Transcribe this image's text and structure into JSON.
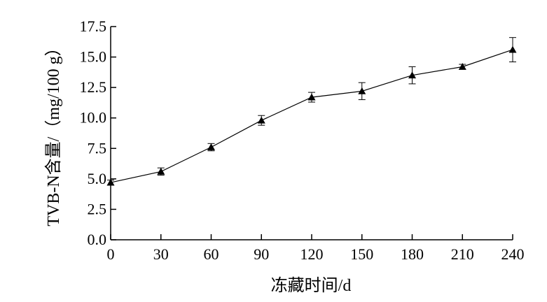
{
  "chart_data": {
    "type": "line",
    "title": "",
    "xlabel": "冻藏时间/d",
    "ylabel": "TVB-N含量/（mg/100 g）",
    "xlim": [
      0,
      240
    ],
    "ylim": [
      0,
      17.5
    ],
    "x_ticks": [
      "0",
      "30",
      "60",
      "90",
      "120",
      "150",
      "180",
      "210",
      "240"
    ],
    "y_ticks": [
      "0.0",
      "2.5",
      "5.0",
      "7.5",
      "10.0",
      "12.5",
      "15.0",
      "17.5"
    ],
    "grid": false,
    "marker": "triangle",
    "series": [
      {
        "x": [
          0,
          30,
          60,
          90,
          120,
          150,
          180,
          210,
          240
        ],
        "y": [
          4.7,
          5.6,
          7.6,
          9.8,
          11.7,
          12.2,
          13.5,
          14.2,
          15.6
        ],
        "error": [
          0.2,
          0.3,
          0.3,
          0.4,
          0.4,
          0.7,
          0.7,
          0.2,
          1.0
        ]
      }
    ]
  }
}
